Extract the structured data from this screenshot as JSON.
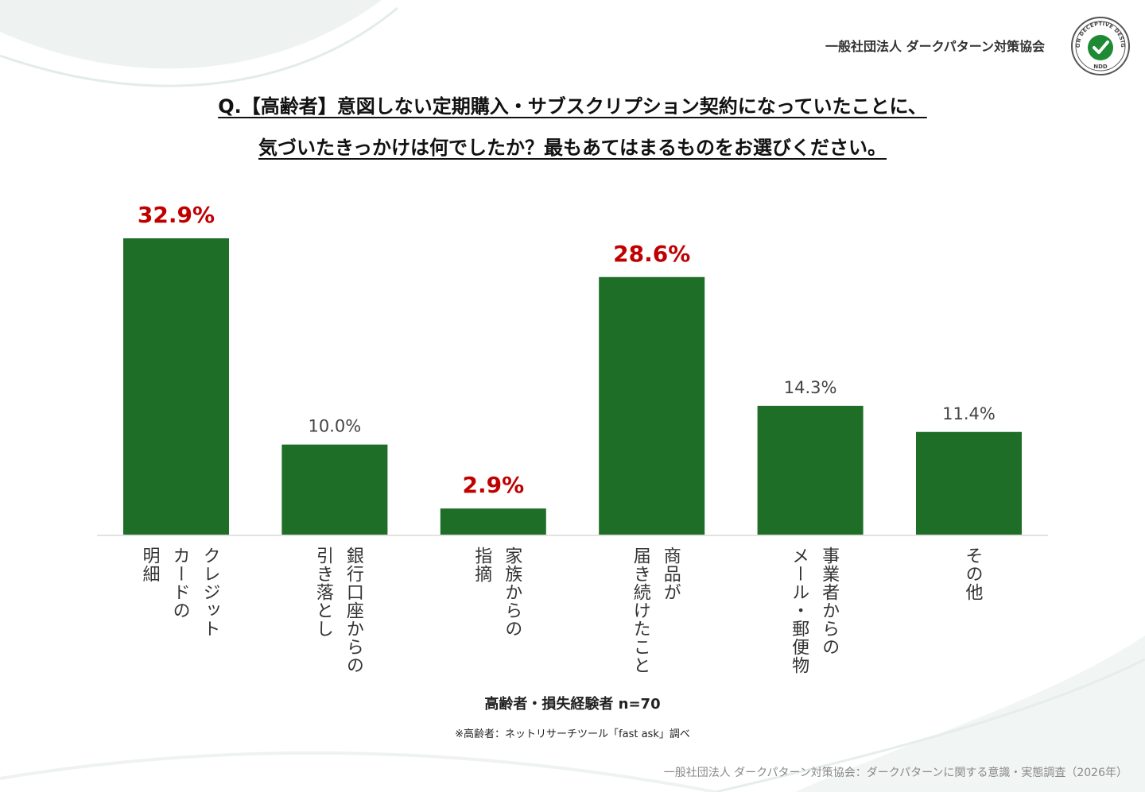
{
  "header": {
    "org_name": "一般社団法人 ダークパターン対策協会",
    "logo_text": "NON DECEPTIVE DESIGN",
    "logo_sub": "NDD"
  },
  "question": {
    "line1": "Q.【高齢者】意図しない定期購入・サブスクリプション契約になっていたことに、",
    "line2": "気づいたきっかけは何でしたか？最もあてはまるものをお選びください。"
  },
  "chart_data": {
    "type": "bar",
    "categories": [
      "クレジットカードの明細",
      "銀行口座からの引き落とし",
      "家族からの指摘",
      "商品が届き続けたこと",
      "事業者からのメール・郵便物",
      "その他"
    ],
    "label_lines": [
      [
        "クレジット",
        "カードの",
        "明細"
      ],
      [
        "銀行口座からの",
        "引き落とし"
      ],
      [
        "家族からの",
        "指摘"
      ],
      [
        "商品が",
        "届き続けたこと"
      ],
      [
        "事業者からの",
        "メール・郵便物"
      ],
      [
        "その他"
      ]
    ],
    "values": [
      32.9,
      10.0,
      2.9,
      28.6,
      14.3,
      11.4
    ],
    "value_labels": [
      "32.9%",
      "10.0%",
      "2.9%",
      "28.6%",
      "14.3%",
      "11.4%"
    ],
    "highlight": [
      true,
      false,
      true,
      true,
      false,
      false
    ],
    "ylim": [
      0,
      35
    ],
    "bar_color": "#1e6e27",
    "highlight_color": "#c00000",
    "normal_label_color": "#444444"
  },
  "sample_text": "高齢者・損失経験者 n=70",
  "note_text": "※高齢者：ネットリサーチツール「fast ask」調べ",
  "footer_text": "一般社団法人 ダークパターン対策協会：ダークパターンに関する意識・実態調査（2026年）"
}
